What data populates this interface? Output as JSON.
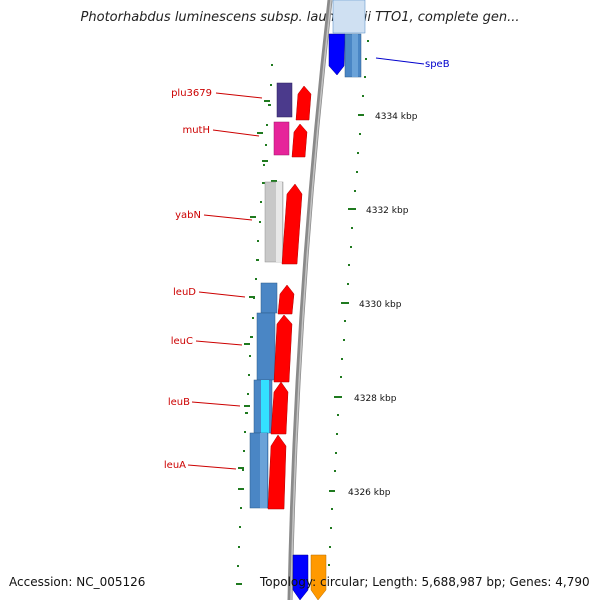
{
  "title": "Photorhabdus luminescens subsp. laumondii TTO1, complete gen...",
  "footer": {
    "accession": "Accession: NC_005126",
    "topology": "Topology: circular; Length: 5,688,987 bp; Genes: 4,790"
  },
  "colors": {
    "backbone": "#8a8a8a",
    "tick": "#1f7a1f",
    "label_red": "#cc0000",
    "label_blue": "#0000cc",
    "gene_red": "#ff0000",
    "gene_blue": "#0000ff",
    "gene_steel": "#4a86c5",
    "gene_purple": "#4b3a8c",
    "gene_magenta": "#e6249a",
    "gene_grey": "#c8c8c8",
    "gene_cyan": "#33e0ff",
    "gene_orange": "#ff9900"
  },
  "ticks": [
    {
      "label": "4334 kbp"
    },
    {
      "label": "4332 kbp"
    },
    {
      "label": "4330 kbp"
    },
    {
      "label": "4328 kbp"
    },
    {
      "label": "4326 kbp"
    }
  ],
  "genes": [
    {
      "name": "speB",
      "color": "label_blue"
    },
    {
      "name": "plu3679",
      "color": "label_red"
    },
    {
      "name": "mutH",
      "color": "label_red"
    },
    {
      "name": "yabN",
      "color": "label_red"
    },
    {
      "name": "leuD",
      "color": "label_red"
    },
    {
      "name": "leuC",
      "color": "label_red"
    },
    {
      "name": "leuB",
      "color": "label_red"
    },
    {
      "name": "leuA",
      "color": "label_red"
    }
  ]
}
